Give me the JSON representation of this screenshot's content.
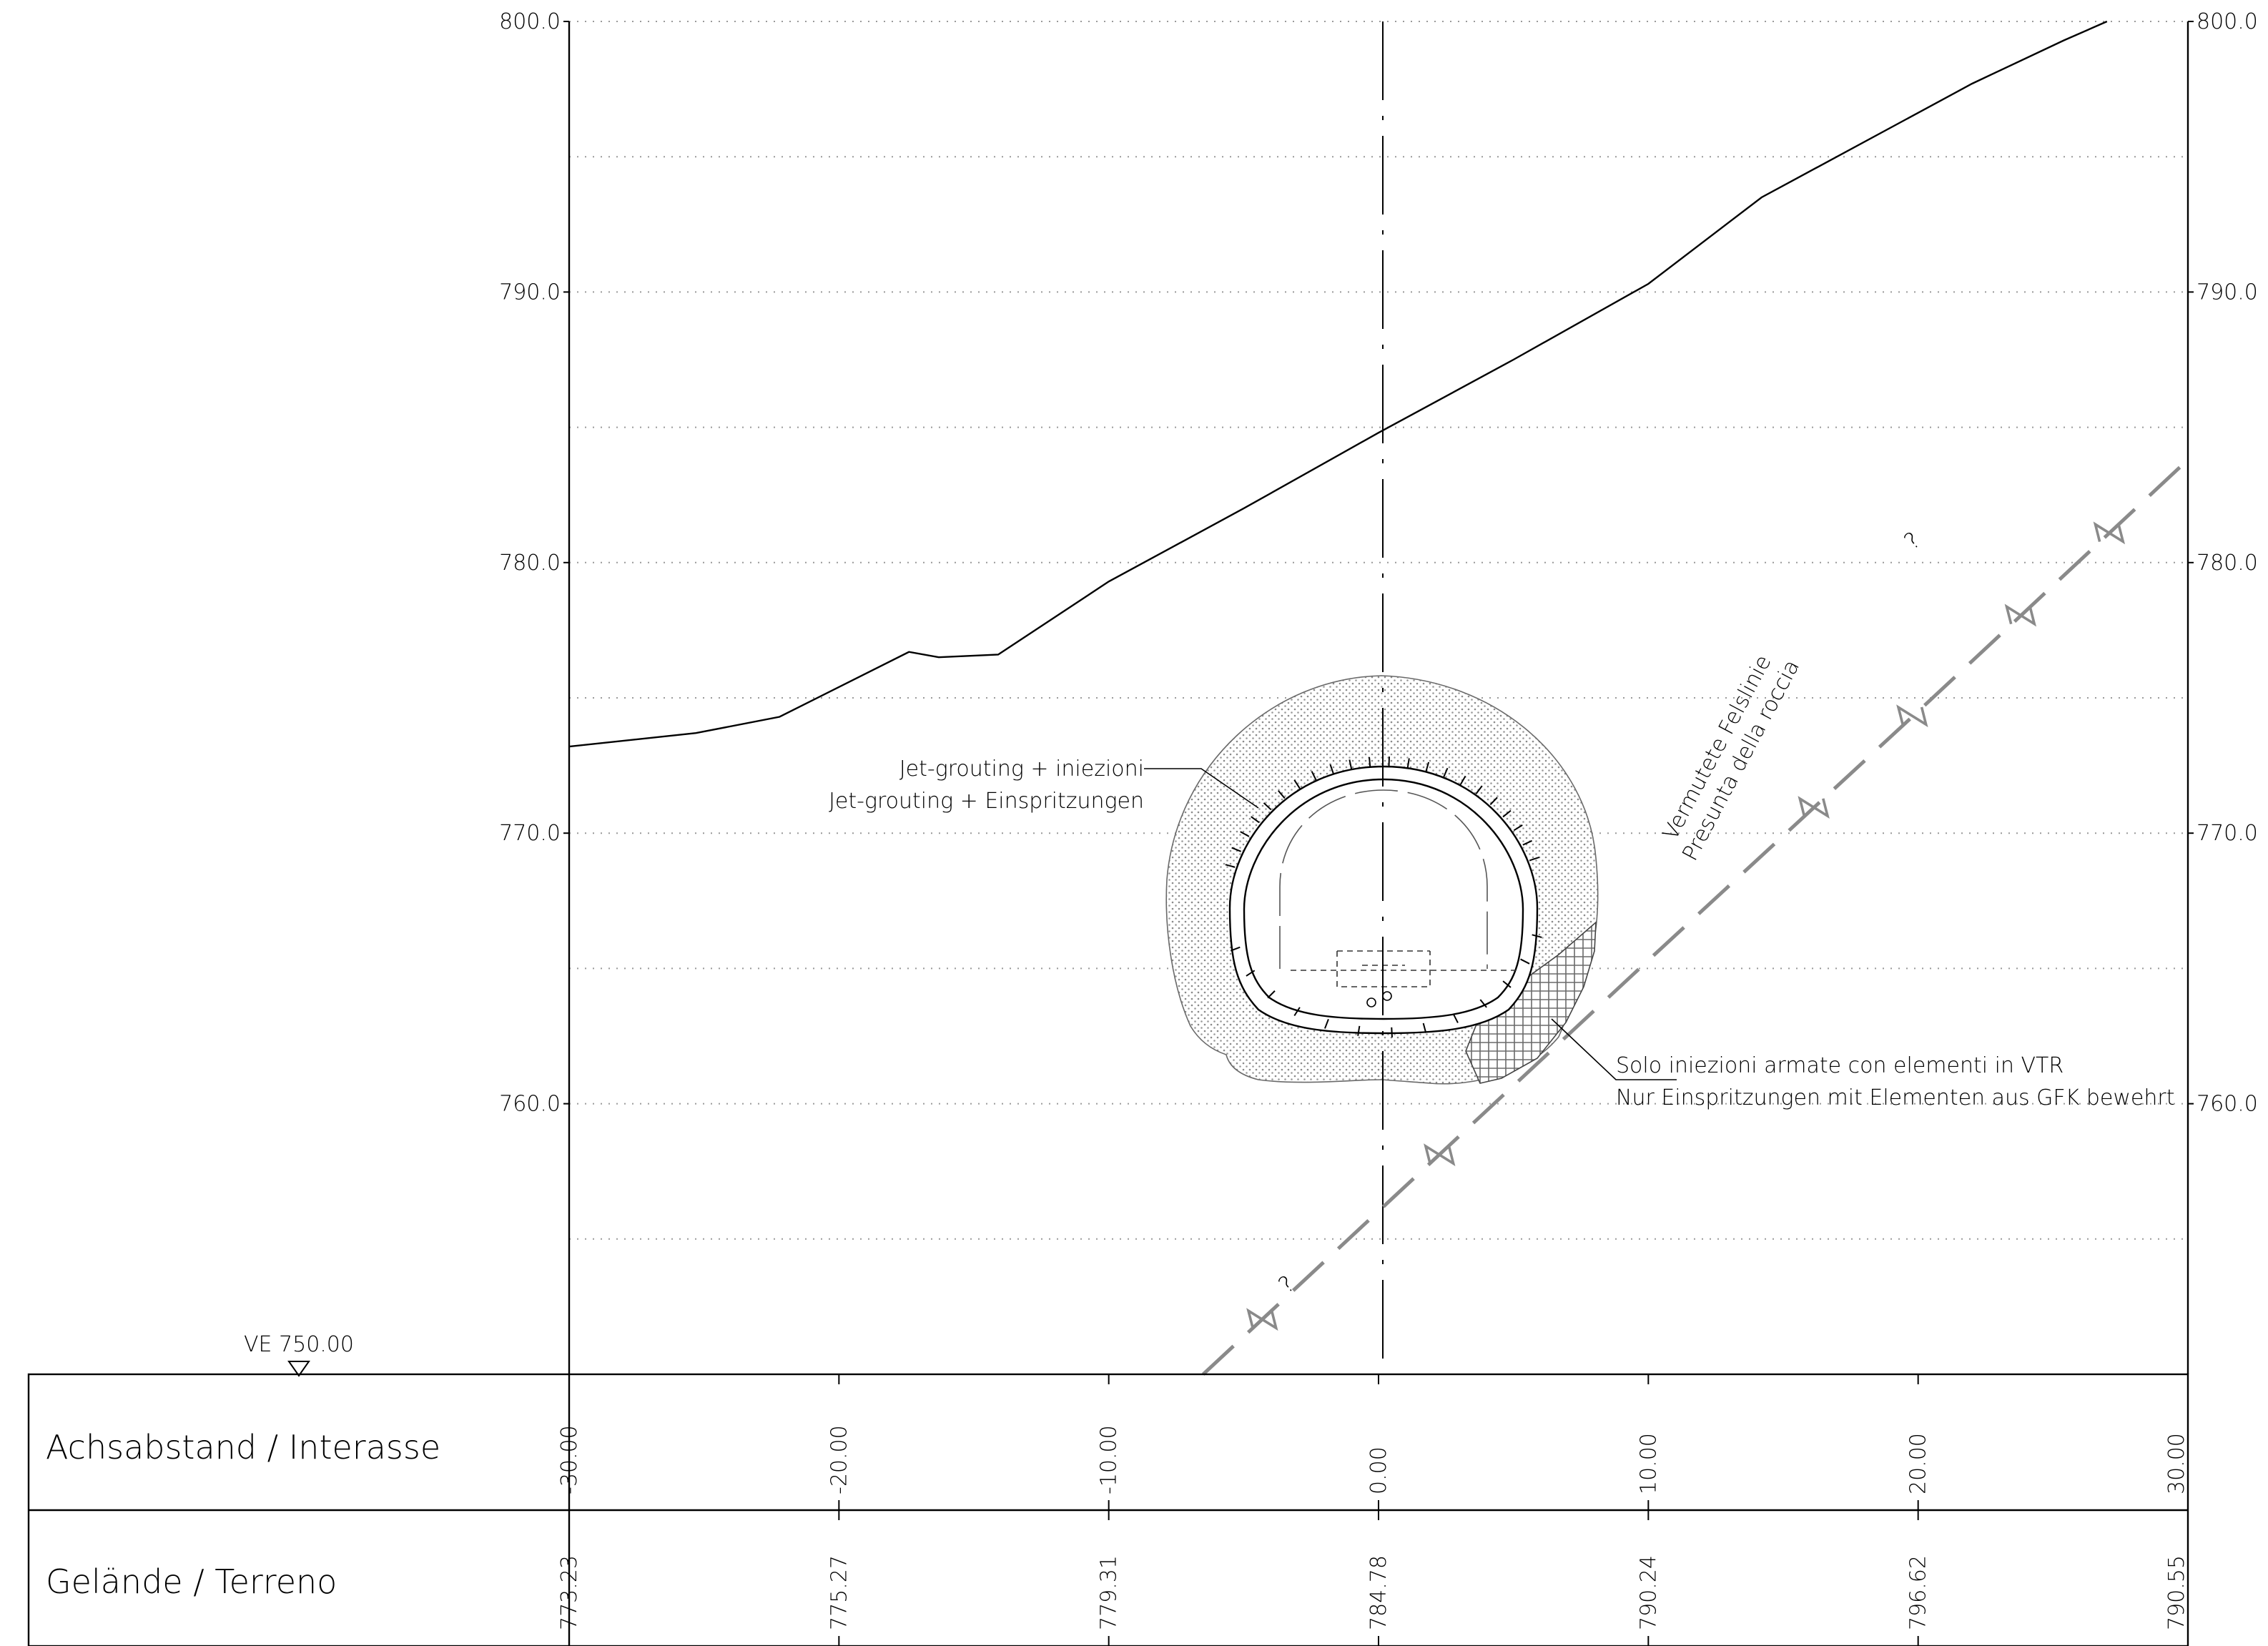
{
  "datum": {
    "label": "VE 750.00"
  },
  "y_axis": {
    "ticks": [
      "800.0",
      "790.0",
      "780.0",
      "770.0",
      "760.0"
    ]
  },
  "table": {
    "row1_label": "Achsabstand / Interasse",
    "row2_label": "Gelände / Terreno",
    "offsets": [
      "-30.00",
      "-20.00",
      "-10.00",
      "0.00",
      "10.00",
      "20.00",
      "30.00"
    ],
    "terrain": [
      "773.23",
      "775.27",
      "779.31",
      "784.78",
      "790.24",
      "796.62",
      "790.55"
    ]
  },
  "annotations": {
    "jet_it": "Jet-grouting  + iniezioni",
    "jet_de": "Jet-grouting  + Einspritzungen",
    "solo_it": "Solo iniezioni armate con elementi in VTR",
    "solo_de": "Nur Einspritzungen mit Elementen aus GFK bewehrt",
    "rock_de": "Vermutete Felslinie",
    "rock_it": "Presunta della roccia",
    "question_mark": "?"
  },
  "chart_data": {
    "type": "line",
    "title": "",
    "xlabel": "Achsabstand / Interasse",
    "ylabel": "",
    "xlim": [
      -30,
      30
    ],
    "ylim": [
      750,
      800
    ],
    "x_ticks": [
      -30,
      -20,
      -10,
      0,
      10,
      20,
      30
    ],
    "y_ticks": [
      760,
      770,
      780,
      790,
      800
    ],
    "series": [
      {
        "name": "Gelände / Terreno",
        "style": "solid",
        "x": [
          -30,
          -25.3,
          -22.2,
          -17.4,
          -16.3,
          -14.1,
          -10,
          -5,
          0,
          5,
          10,
          14.2,
          22,
          25.4,
          27
        ],
        "y": [
          773.2,
          773.7,
          774.3,
          776.7,
          776.5,
          776.6,
          779.3,
          782.0,
          784.8,
          787.5,
          790.3,
          793.5,
          797.7,
          799.3,
          800.0
        ]
      },
      {
        "name": "Vermutete Felslinie / Presunta della roccia",
        "style": "dashed",
        "x": [
          -6.5,
          10,
          20,
          30
        ],
        "y": [
          750,
          765.3,
          774.5,
          783.8
        ]
      }
    ],
    "grid": true
  }
}
